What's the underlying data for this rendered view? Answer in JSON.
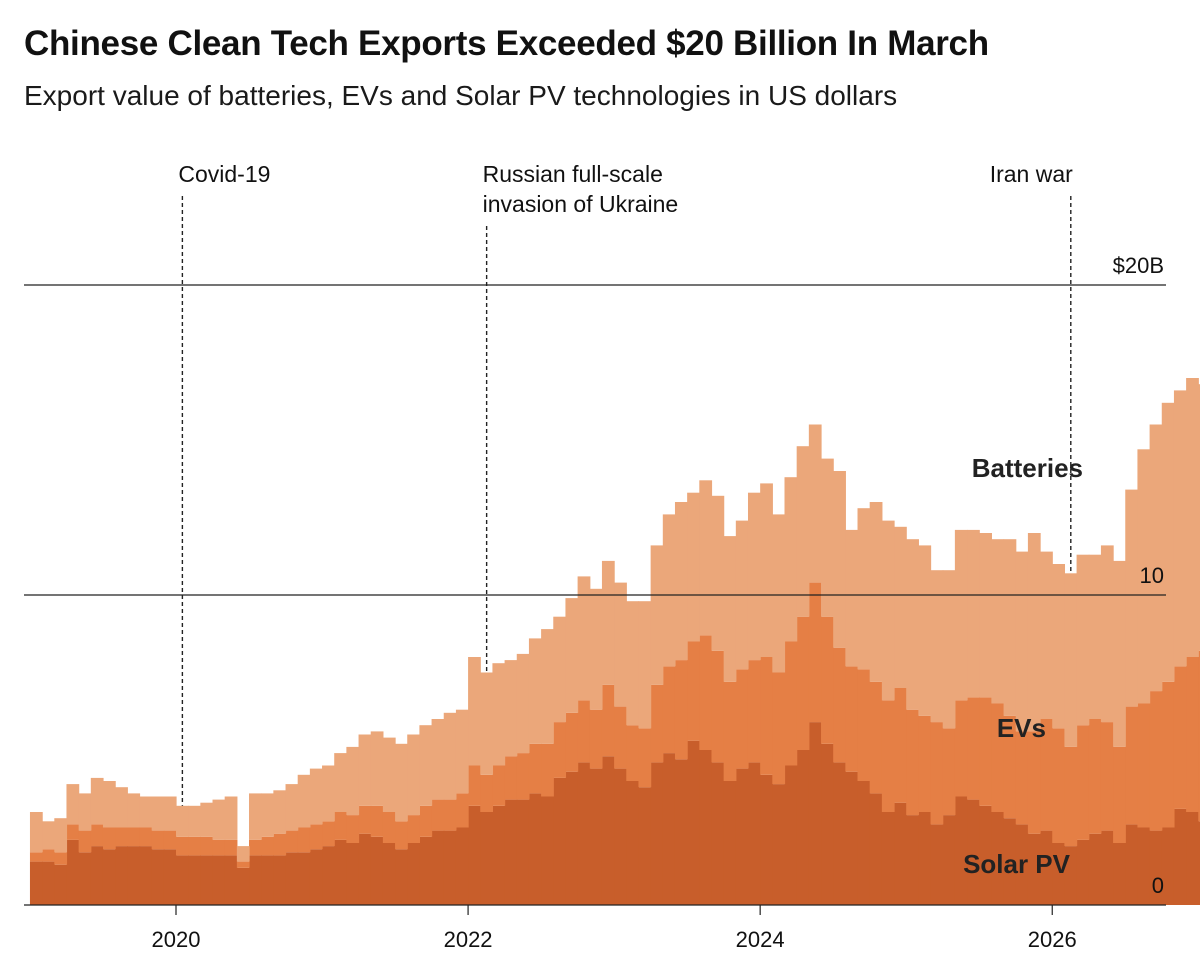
{
  "title": "Chinese Clean Tech Exports Exceeded $20 Billion In March",
  "subtitle": "Export value of batteries, EVs and Solar PV technologies in US dollars",
  "colors": {
    "solar": "#c85e2b",
    "evs": "#e57f45",
    "batteries": "#eba77a",
    "gridline": "#222222",
    "event_line": "#222222"
  },
  "chart_data": {
    "type": "area",
    "stacked": true,
    "grid": true,
    "ylim": [
      0,
      22
    ],
    "yticks": [
      {
        "value": 0,
        "label": "0"
      },
      {
        "value": 10,
        "label": "10"
      },
      {
        "value": 20,
        "label": "$20B"
      }
    ],
    "xticks": [
      {
        "value": "2020-01",
        "label": "2020"
      },
      {
        "value": "2022-01",
        "label": "2022"
      },
      {
        "value": "2024-01",
        "label": "2024"
      },
      {
        "value": "2026-01",
        "label": "2026"
      }
    ],
    "xlim": [
      "2019-01",
      "2026-05"
    ],
    "start_month": "2019-01",
    "series": [
      {
        "name": "Solar PV",
        "color": "#c85e2b",
        "values": [
          1.4,
          1.4,
          1.3,
          2.1,
          1.7,
          1.9,
          1.8,
          1.9,
          1.9,
          1.9,
          1.8,
          1.8,
          1.6,
          1.6,
          1.6,
          1.6,
          1.6,
          1.2,
          1.6,
          1.6,
          1.6,
          1.7,
          1.7,
          1.8,
          1.9,
          2.1,
          2.0,
          2.3,
          2.2,
          2.0,
          1.8,
          2.0,
          2.2,
          2.4,
          2.4,
          2.5,
          3.2,
          3.0,
          3.2,
          3.4,
          3.4,
          3.6,
          3.5,
          4.1,
          4.3,
          4.6,
          4.4,
          4.8,
          4.4,
          4.0,
          3.8,
          4.6,
          4.9,
          4.7,
          5.3,
          5.0,
          4.6,
          4.0,
          4.4,
          4.6,
          4.2,
          3.9,
          4.5,
          5.0,
          5.9,
          5.2,
          4.6,
          4.3,
          4.0,
          3.6,
          3.0,
          3.3,
          2.9,
          3.0,
          2.6,
          2.9,
          3.5,
          3.4,
          3.2,
          3.0,
          2.8,
          2.6,
          2.3,
          2.4,
          2.0,
          1.9,
          2.1,
          2.3,
          2.4,
          2.0,
          2.6,
          2.5,
          2.4,
          2.5,
          3.1,
          3.0,
          2.7,
          2.5,
          2.5,
          3.9,
          2.8
        ]
      },
      {
        "name": "EVs",
        "color": "#e57f45",
        "values": [
          0.3,
          0.4,
          0.4,
          0.5,
          0.7,
          0.7,
          0.7,
          0.6,
          0.6,
          0.6,
          0.6,
          0.6,
          0.6,
          0.6,
          0.6,
          0.5,
          0.5,
          0.2,
          0.5,
          0.6,
          0.7,
          0.7,
          0.8,
          0.8,
          0.8,
          0.9,
          0.9,
          0.9,
          1.0,
          1.0,
          0.9,
          0.9,
          1.0,
          1.0,
          1.0,
          1.1,
          1.3,
          1.2,
          1.3,
          1.4,
          1.5,
          1.6,
          1.7,
          1.8,
          1.9,
          2.0,
          1.9,
          2.3,
          2.0,
          1.8,
          1.9,
          2.5,
          2.8,
          3.2,
          3.2,
          3.7,
          3.6,
          3.2,
          3.2,
          3.3,
          3.8,
          3.6,
          4.0,
          4.3,
          4.5,
          4.1,
          3.7,
          3.4,
          3.6,
          3.6,
          3.6,
          3.7,
          3.4,
          3.1,
          3.3,
          2.8,
          3.1,
          3.3,
          3.5,
          3.5,
          3.3,
          3.0,
          3.3,
          3.6,
          3.7,
          3.2,
          3.7,
          3.7,
          3.5,
          3.1,
          3.8,
          4.0,
          4.5,
          4.7,
          4.6,
          5.0,
          5.5,
          5.8,
          5.4,
          6.6,
          7.5
        ]
      },
      {
        "name": "Batteries",
        "color": "#eba77a",
        "values": [
          1.3,
          0.9,
          1.1,
          1.3,
          1.2,
          1.5,
          1.5,
          1.3,
          1.1,
          1.0,
          1.1,
          1.1,
          1.0,
          1.0,
          1.1,
          1.3,
          1.4,
          0.5,
          1.5,
          1.4,
          1.4,
          1.5,
          1.7,
          1.8,
          1.8,
          1.9,
          2.2,
          2.3,
          2.4,
          2.4,
          2.5,
          2.6,
          2.6,
          2.6,
          2.8,
          2.7,
          3.5,
          3.3,
          3.3,
          3.1,
          3.2,
          3.4,
          3.7,
          3.4,
          3.7,
          4.0,
          3.9,
          4.0,
          4.0,
          4.0,
          4.1,
          4.5,
          4.9,
          5.1,
          4.8,
          5.0,
          5.0,
          4.7,
          4.8,
          5.4,
          5.6,
          5.1,
          5.3,
          5.5,
          5.1,
          5.1,
          5.7,
          4.4,
          5.2,
          5.8,
          5.8,
          5.2,
          5.5,
          5.5,
          4.9,
          5.1,
          5.5,
          5.4,
          5.3,
          5.3,
          5.7,
          5.8,
          6.4,
          5.4,
          5.3,
          5.6,
          5.5,
          5.3,
          5.7,
          6.0,
          7.0,
          8.2,
          8.6,
          9.0,
          8.9,
          9.0,
          8.6,
          9.4,
          8.0,
          10.3,
          7.9
        ]
      }
    ],
    "annotations": [
      {
        "x": "2020-01",
        "label_lines": [
          "Covid-19"
        ]
      },
      {
        "x": "2022-02",
        "label_lines": [
          "Russian full-scale",
          "invasion of Ukraine"
        ]
      },
      {
        "x": "2026-02",
        "label_lines": [
          "Iran war"
        ]
      }
    ],
    "series_labels": [
      {
        "series": "Batteries",
        "text": "Batteries"
      },
      {
        "series": "EVs",
        "text": "EVs"
      },
      {
        "series": "Solar PV",
        "text": "Solar PV"
      }
    ]
  }
}
